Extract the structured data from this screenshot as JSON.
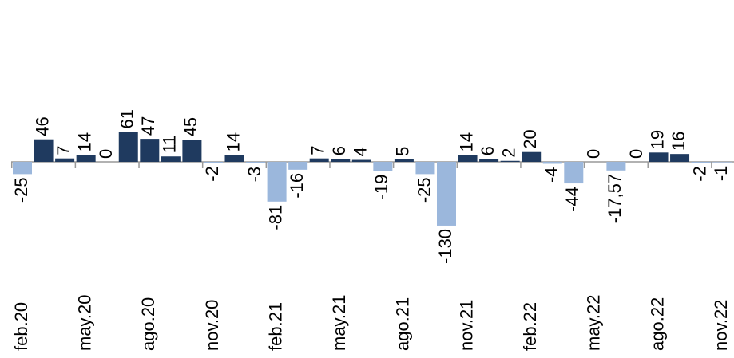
{
  "chart_data": {
    "type": "bar",
    "categories": [
      "feb.20",
      null,
      null,
      "may.20",
      null,
      null,
      "ago.20",
      null,
      null,
      "nov.20",
      null,
      null,
      "feb.21",
      null,
      null,
      "may.21",
      null,
      null,
      "ago.21",
      null,
      null,
      "nov.21",
      null,
      null,
      "feb.22",
      null,
      null,
      "may.22",
      null,
      null,
      "ago.22",
      null,
      null,
      "nov.22"
    ],
    "values": [
      -25,
      46,
      7,
      14,
      0,
      61,
      47,
      11,
      45,
      -2,
      14,
      -3,
      -81,
      -16,
      7,
      6,
      4,
      -19,
      5,
      -25,
      -130,
      14,
      6,
      2,
      20,
      -4,
      -44,
      0,
      -17.57,
      0,
      19,
      16,
      -2,
      -1
    ],
    "value_labels": [
      "-25",
      "46",
      "7",
      "14",
      "0",
      "61",
      "47",
      "11",
      "45",
      "-2",
      "14",
      "-3",
      "-81",
      "-16",
      "7",
      "6",
      "4",
      "-19",
      "5",
      "-25",
      "-130",
      "14",
      "6",
      "2",
      "20",
      "-4",
      "-44",
      "0",
      "-17,57",
      "0",
      "19",
      "16",
      "-2",
      "-1"
    ],
    "colors": {
      "positive": "#1f3a5f",
      "negative": "#9bb7dc"
    }
  }
}
